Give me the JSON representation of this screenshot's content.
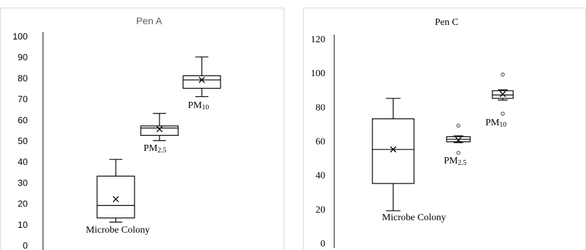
{
  "chart_data": [
    {
      "type": "box",
      "title": "Pen A",
      "ylim": [
        0,
        100
      ],
      "yticks": [
        0,
        10,
        20,
        30,
        40,
        50,
        60,
        70,
        80,
        90,
        100
      ],
      "boxes": [
        {
          "name": "Microbe Colony",
          "label_main": "Microbe Colony",
          "label_sub": "",
          "min": 11,
          "q1": 13,
          "median": 19,
          "q3": 33,
          "max": 41,
          "mean": 22,
          "outliers": []
        },
        {
          "name": "PM2.5",
          "label_main": "PM",
          "label_sub": "2.5",
          "min": 50,
          "q1": 52.5,
          "median": 56,
          "q3": 57,
          "max": 63,
          "mean": 55.5,
          "outliers": []
        },
        {
          "name": "PM10",
          "label_main": "PM",
          "label_sub": "10",
          "min": 71,
          "q1": 75,
          "median": 79,
          "q3": 81,
          "max": 90,
          "mean": 79,
          "outliers": []
        }
      ]
    },
    {
      "type": "box",
      "title": "Pen C",
      "ylim": [
        0,
        120
      ],
      "yticks": [
        0,
        20,
        40,
        60,
        80,
        100,
        120
      ],
      "boxes": [
        {
          "name": "Microbe Colony",
          "label_main": "Microbe Colony",
          "label_sub": "",
          "min": 19,
          "q1": 35,
          "median": 55,
          "q3": 73,
          "max": 85,
          "mean": 55,
          "outliers": []
        },
        {
          "name": "PM2.5",
          "label_main": "PM",
          "label_sub": "2.5",
          "min": 59,
          "q1": 59.5,
          "median": 61,
          "q3": 62.5,
          "max": 63,
          "mean": 60.5,
          "outliers": [
            53,
            69
          ]
        },
        {
          "name": "PM10",
          "label_main": "PM",
          "label_sub": "10",
          "min": 84,
          "q1": 85,
          "median": 87,
          "q3": 89.5,
          "max": 90,
          "mean": 87.5,
          "outliers": [
            76,
            99
          ]
        }
      ]
    }
  ]
}
